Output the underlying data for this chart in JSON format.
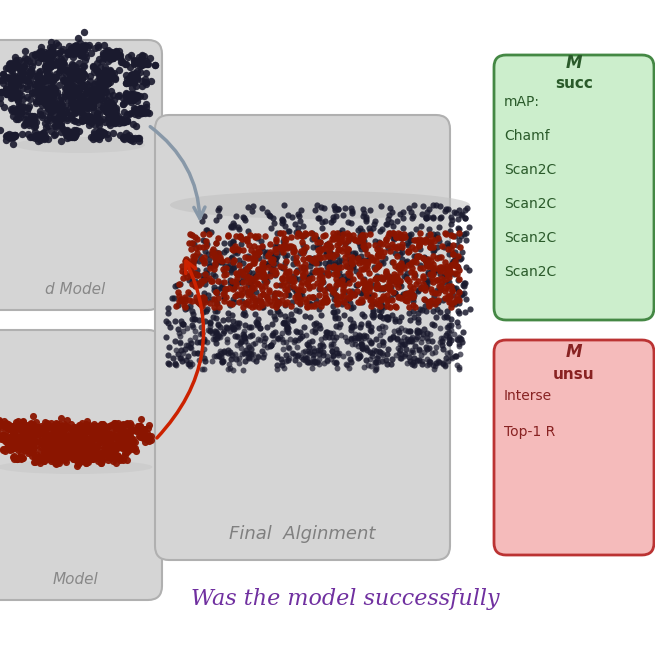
{
  "bg_color": "#ffffff",
  "panel_bg": "#d8d8d8",
  "panel_edge": "#aaaaaa",
  "top_panel_label": "d Model",
  "bottom_panel_label": "Model",
  "center_panel_label": "Final Alginment",
  "bottom_text": "Was the model successfully",
  "bottom_text_color": "#7030A0",
  "green_box": {
    "title": "M",
    "line2": "succ",
    "lines": [
      "mAP:",
      "Chamf",
      "Scan2C",
      "Scan2C",
      "Scan2C",
      "Scan2C"
    ],
    "bg": "#cceecc",
    "border": "#448844",
    "text_color": "#2a5a2a"
  },
  "red_box": {
    "title": "M",
    "line2": "unsu",
    "lines": [
      "Interse",
      "Top-1 R"
    ],
    "bg": "#f5bbbb",
    "border": "#bb3333",
    "text_color": "#882222"
  },
  "dark_dot_color": "#1a1a2e",
  "red_dot_color": "#8b1500"
}
